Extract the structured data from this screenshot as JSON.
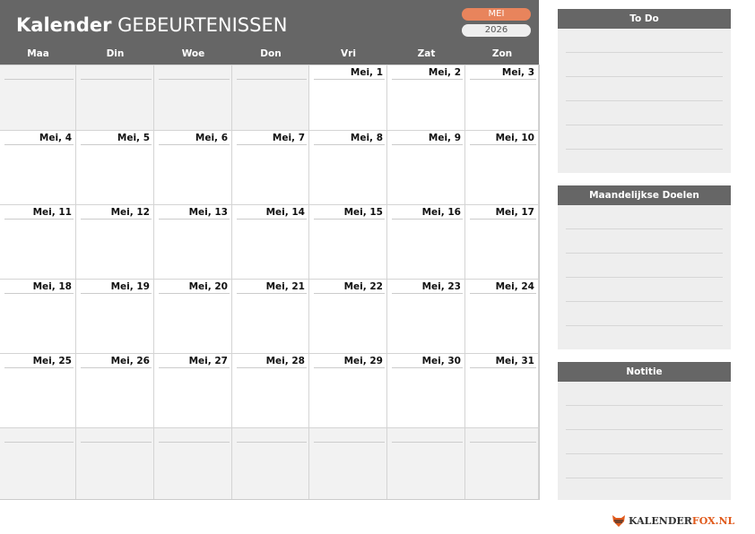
{
  "header": {
    "title_bold": "Kalender",
    "title_rest": "GEBEURTENISSEN",
    "month": "MEI",
    "year": "2026"
  },
  "weekdays": [
    "Maa",
    "Din",
    "Woe",
    "Don",
    "Vri",
    "Zat",
    "Zon"
  ],
  "weeks": [
    [
      "",
      "",
      "",
      "",
      "Mei, 1",
      "Mei, 2",
      "Mei, 3"
    ],
    [
      "Mei, 4",
      "Mei, 5",
      "Mei, 6",
      "Mei, 7",
      "Mei, 8",
      "Mei, 9",
      "Mei, 10"
    ],
    [
      "Mei, 11",
      "Mei, 12",
      "Mei, 13",
      "Mei, 14",
      "Mei, 15",
      "Mei, 16",
      "Mei, 17"
    ],
    [
      "Mei, 18",
      "Mei, 19",
      "Mei, 20",
      "Mei, 21",
      "Mei, 22",
      "Mei, 23",
      "Mei, 24"
    ],
    [
      "Mei, 25",
      "Mei, 26",
      "Mei, 27",
      "Mei, 28",
      "Mei, 29",
      "Mei, 30",
      "Mei, 31"
    ],
    [
      "",
      "",
      "",
      "",
      "",
      "",
      ""
    ]
  ],
  "panels": {
    "todo": "To Do",
    "goals": "Maandelijkse Doelen",
    "notes": "Notitie"
  },
  "logo": {
    "text_main": "KALENDER",
    "text_accent": "FOX.NL"
  },
  "colors": {
    "header": "#666666",
    "accent": "#e8845c",
    "empty_cell": "#f2f2f2"
  }
}
